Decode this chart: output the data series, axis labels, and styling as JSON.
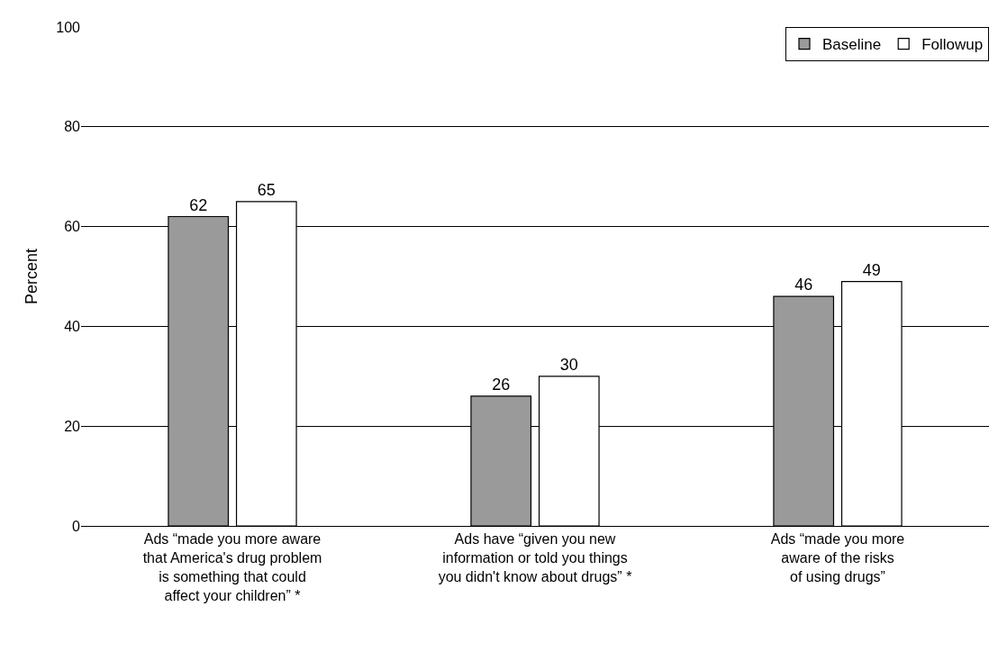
{
  "chart_data": {
    "type": "bar",
    "ylabel": "Percent",
    "categories": [
      "Ads “made you more aware\nthat America's drug problem\nis something that could\naffect your children” *",
      "Ads have “given you new\ninformation or told you things\nyou didn't know about drugs” *",
      "Ads “made you more\naware of the risks\nof using drugs”"
    ],
    "series": [
      {
        "name": "Baseline",
        "color": "#9a9a9a",
        "values": [
          62,
          26,
          46
        ]
      },
      {
        "name": "Followup",
        "color": "#ffffff",
        "values": [
          65,
          30,
          49
        ]
      }
    ],
    "ylim": [
      0,
      100
    ],
    "yticks": [
      0,
      20,
      40,
      60,
      80,
      100
    ],
    "grid": "y",
    "legend": "top right",
    "data_labels": true
  }
}
